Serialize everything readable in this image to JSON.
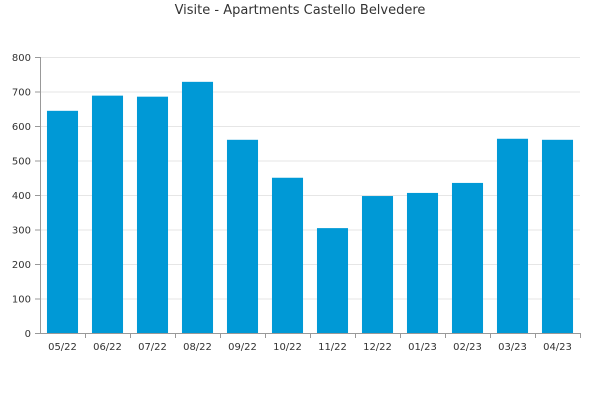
{
  "colors": {
    "bar": "#0099d6",
    "grid": "#e6e6e6",
    "axis": "#999999",
    "text": "#333333"
  },
  "chart_data": {
    "type": "bar",
    "title": "Visite - Apartments Castello Belvedere",
    "xlabel": "",
    "ylabel": "",
    "categories": [
      "05/22",
      "06/22",
      "07/22",
      "08/22",
      "09/22",
      "10/22",
      "11/22",
      "12/22",
      "01/23",
      "02/23",
      "03/23",
      "04/23"
    ],
    "values": [
      644,
      688,
      685,
      728,
      560,
      450,
      304,
      397,
      406,
      435,
      563,
      560
    ],
    "ylim": [
      0,
      800
    ],
    "yticks": [
      0,
      100,
      200,
      300,
      400,
      500,
      600,
      700,
      800
    ],
    "grid": true,
    "legend": "none"
  }
}
